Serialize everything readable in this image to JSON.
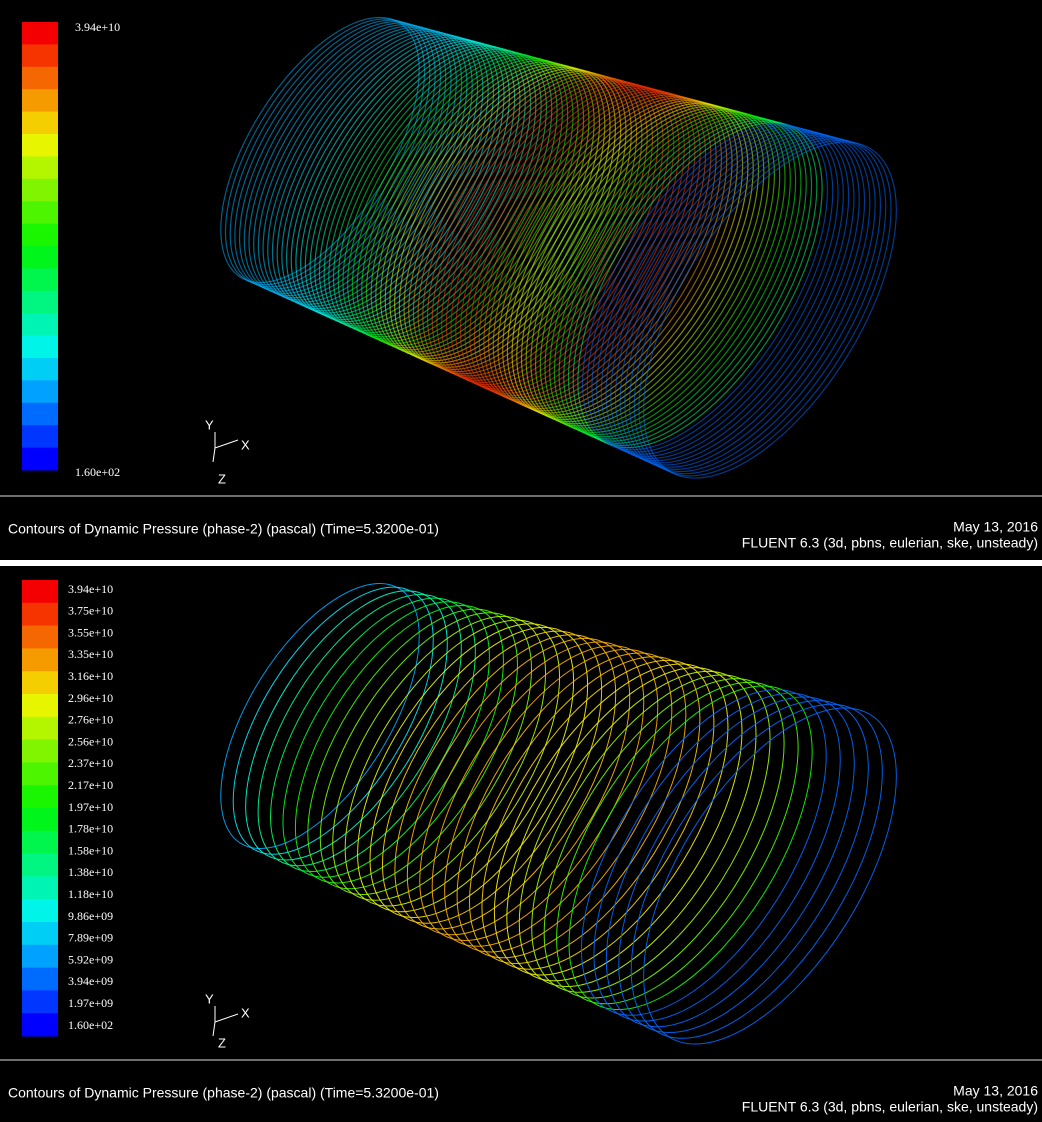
{
  "panels": [
    {
      "legend": {
        "labels": [
          "3.94e+10",
          "1.60e+02"
        ]
      },
      "axes": {
        "y": "Y",
        "x": "X",
        "z": "Z"
      },
      "caption": "Contours of Dynamic Pressure (phase-2)  (pascal)  (Time=5.3200e-01)",
      "date": "May 13, 2016",
      "solver": "FLUENT 6.3 (3d, pbns, eulerian, ske, unsteady)"
    },
    {
      "legend": {
        "labels": [
          "3.94e+10",
          "3.75e+10",
          "3.55e+10",
          "3.35e+10",
          "3.16e+10",
          "2.96e+10",
          "2.76e+10",
          "2.56e+10",
          "2.37e+10",
          "2.17e+10",
          "1.97e+10",
          "1.78e+10",
          "1.58e+10",
          "1.38e+10",
          "1.18e+10",
          "9.86e+09",
          "7.89e+09",
          "5.92e+09",
          "3.94e+09",
          "1.97e+09",
          "1.60e+02"
        ]
      },
      "axes": {
        "y": "Y",
        "x": "X",
        "z": "Z"
      },
      "caption": "Contours of Dynamic Pressure (phase-2)  (pascal)  (Time=5.3200e-01)",
      "date": "May 13, 2016",
      "solver": "FLUENT 6.3 (3d, pbns, eulerian, ske, unsteady)"
    }
  ]
}
